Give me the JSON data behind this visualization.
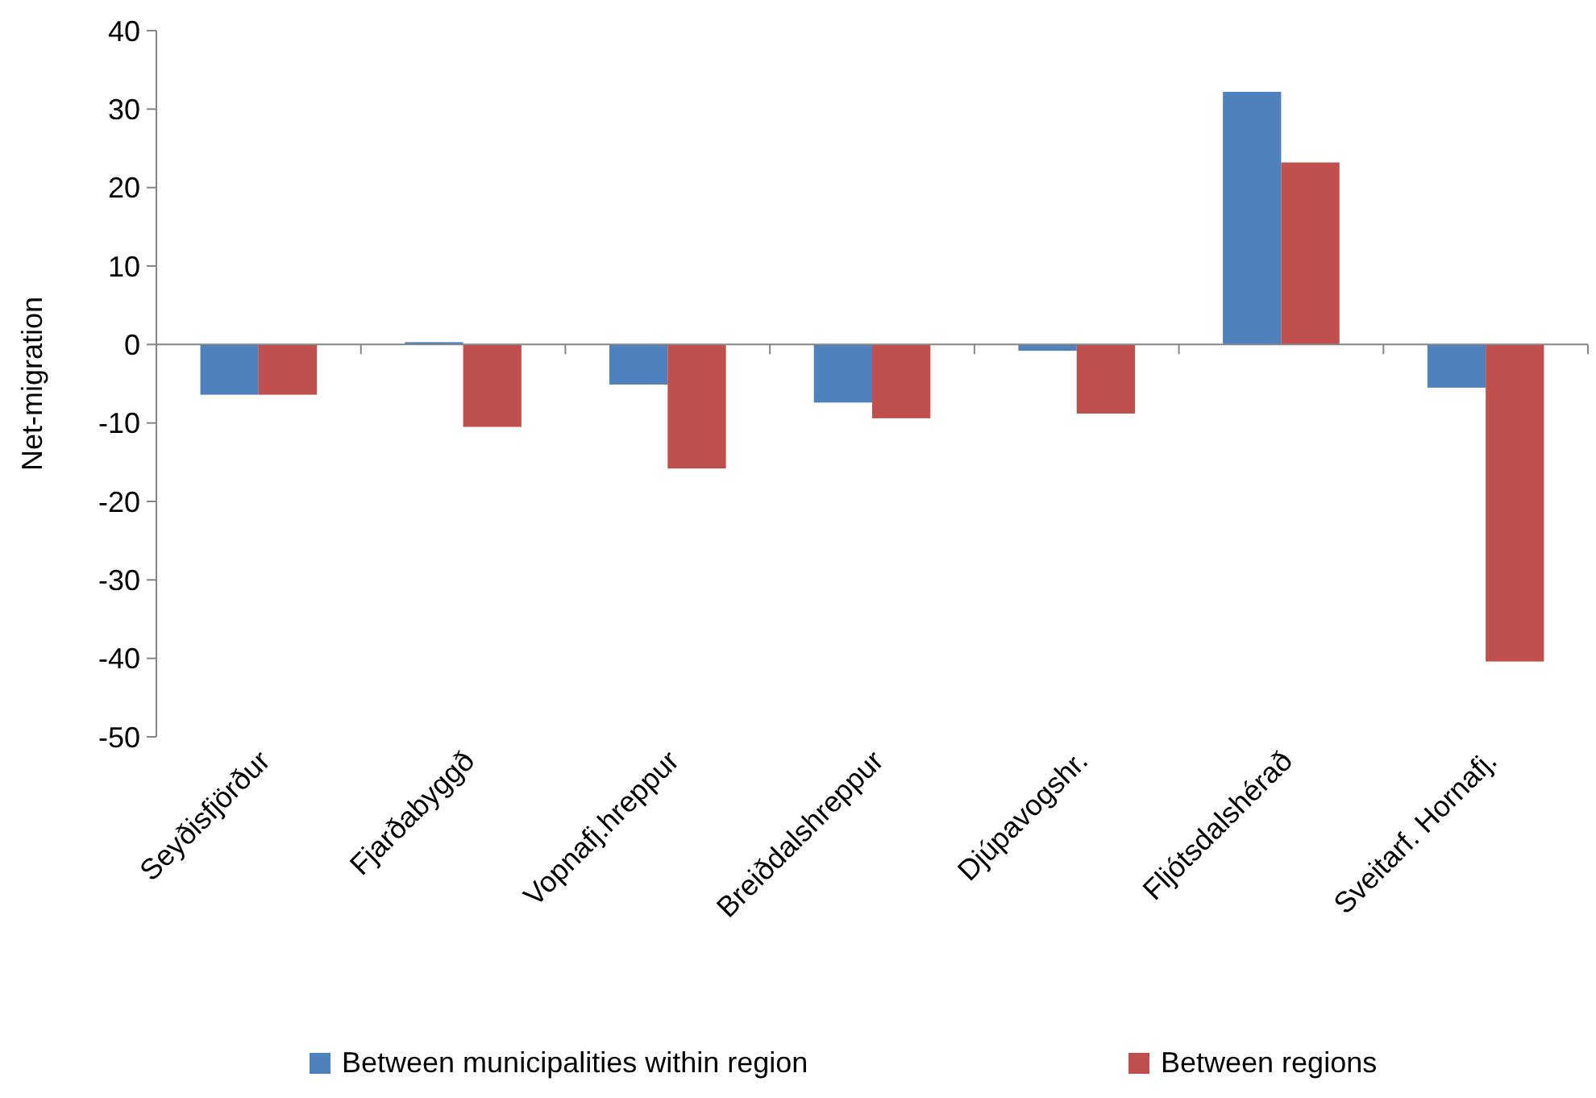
{
  "chart_data": {
    "type": "bar",
    "ylabel": "Net-migration",
    "categories": [
      "Seyðisfjörður",
      "Fjarðabyggð",
      "Vopnafj.hreppur",
      "Breiðdalshreppur",
      "Djúpavogshr.",
      "Fljótsdalshérað",
      "Sveitarf. Hornafj."
    ],
    "series": [
      {
        "name": "Between municipalities within region",
        "color": "#4f81bd",
        "values": [
          -6.4,
          0.3,
          -5.1,
          -7.4,
          -0.8,
          32.2,
          -5.5
        ]
      },
      {
        "name": "Between regions",
        "color": "#c0504d",
        "values": [
          -6.4,
          -10.5,
          -15.8,
          -9.4,
          -8.8,
          23.2,
          -40.4
        ]
      }
    ],
    "ylim": [
      -50,
      40
    ],
    "yticks": [
      -50,
      -40,
      -30,
      -20,
      -10,
      0,
      10,
      20,
      30,
      40
    ],
    "legend": "bottom"
  }
}
